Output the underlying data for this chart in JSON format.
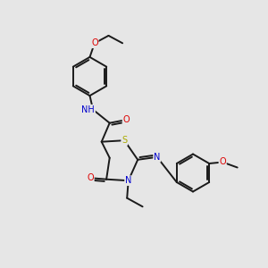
{
  "bg_color": "#e6e6e6",
  "bond_color": "#1a1a1a",
  "atom_colors": {
    "O": "#dd0000",
    "N": "#0000cc",
    "S": "#aaaa00",
    "H": "#008888",
    "C": "#1a1a1a"
  },
  "font_size": 7.0,
  "bond_width": 1.4,
  "fig_bg": "#e6e6e6"
}
